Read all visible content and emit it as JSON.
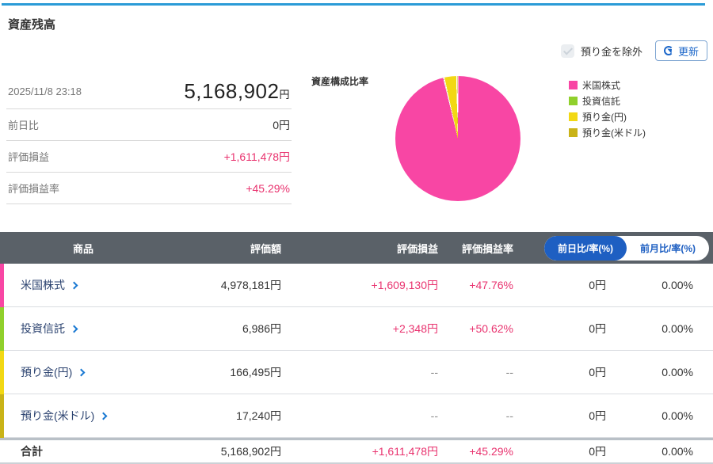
{
  "page": {
    "title": "資産残高"
  },
  "controls": {
    "exclude_checkbox_label": "預り金を除外",
    "refresh_button_label": "更新"
  },
  "summary": {
    "timestamp": "2025/11/8 23:18",
    "total_value": "5,168,902",
    "total_unit": "円",
    "rows": [
      {
        "label": "前日比",
        "value": "0円"
      },
      {
        "label": "評価損益",
        "value": "+1,611,478円"
      },
      {
        "label": "評価損益率",
        "value": "+45.29%"
      }
    ]
  },
  "chart_data": {
    "type": "pie",
    "title": "資産構成比率",
    "labels": [
      "米国株式",
      "投資信託",
      "預り金(円)",
      "預り金(米ドル)"
    ],
    "values_yen": [
      4978181,
      6986,
      166495,
      17240
    ],
    "percentages": [
      96.31,
      0.14,
      3.22,
      0.33
    ],
    "colors": [
      "#f846a4",
      "#90d02c",
      "#f2d814",
      "#c9b318"
    ],
    "legend_position": "right"
  },
  "table": {
    "headers": {
      "product": "商品",
      "value": "評価額",
      "pl": "評価損益",
      "pl_rate": "評価損益率"
    },
    "toggle": {
      "active_label": "前日比/率(%)",
      "inactive_label": "前月比/率(%)"
    },
    "rows": [
      {
        "name": "米国株式",
        "value": "4,978,181円",
        "pl": "+1,609,130円",
        "pl_rate": "+47.76%",
        "day_change": "0円",
        "day_rate": "0.00%"
      },
      {
        "name": "投資信託",
        "value": "6,986円",
        "pl": "+2,348円",
        "pl_rate": "+50.62%",
        "day_change": "0円",
        "day_rate": "0.00%"
      },
      {
        "name": "預り金(円)",
        "value": "166,495円",
        "pl": "--",
        "pl_rate": "--",
        "day_change": "0円",
        "day_rate": "0.00%"
      },
      {
        "name": "預り金(米ドル)",
        "value": "17,240円",
        "pl": "--",
        "pl_rate": "--",
        "day_change": "0円",
        "day_rate": "0.00%"
      }
    ],
    "total": {
      "name": "合計",
      "value": "5,168,902円",
      "pl": "+1,611,478円",
      "pl_rate": "+45.29%",
      "day_change": "0円",
      "day_rate": "0.00%"
    }
  }
}
